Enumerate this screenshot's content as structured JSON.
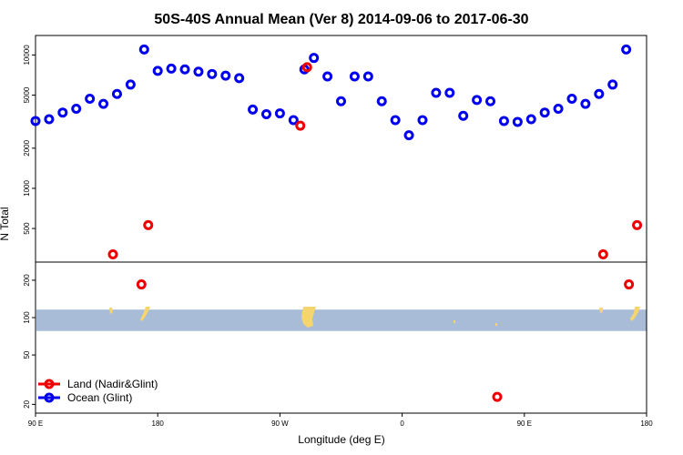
{
  "chart_data": {
    "type": "scatter",
    "title": "50S-40S Annual Mean (Ver 8)   2014-09-06 to 2017-06-30",
    "xlabel": "Longitude (deg E)",
    "ylabel": "N Total",
    "x_range": [
      90,
      450
    ],
    "x_ticks": [
      {
        "value": 90,
        "label": "90 E"
      },
      {
        "value": 180,
        "label": "180"
      },
      {
        "value": 270,
        "label": "90 W"
      },
      {
        "value": 360,
        "label": "0"
      },
      {
        "value": 450,
        "label": "90 E"
      },
      {
        "value": 540,
        "label": "180"
      }
    ],
    "top_panel": {
      "scale": "log",
      "ylim": [
        280,
        14000
      ],
      "y_ticks": [
        500,
        1000,
        2000,
        5000,
        10000
      ],
      "series": [
        {
          "name": "Ocean (Glint)",
          "color": "#0000ee",
          "points": [
            [
              90,
              3200
            ],
            [
              100,
              3300
            ],
            [
              110,
              3700
            ],
            [
              120,
              3950
            ],
            [
              130,
              4700
            ],
            [
              140,
              4300
            ],
            [
              150,
              5100
            ],
            [
              160,
              6000
            ],
            [
              170,
              11000
            ],
            [
              180,
              7600
            ],
            [
              190,
              7900
            ],
            [
              200,
              7800
            ],
            [
              210,
              7500
            ],
            [
              220,
              7200
            ],
            [
              230,
              7000
            ],
            [
              240,
              6700
            ],
            [
              250,
              3900
            ],
            [
              260,
              3600
            ],
            [
              270,
              3650
            ],
            [
              280,
              3250
            ],
            [
              288,
              7800
            ],
            [
              295,
              9500
            ],
            [
              305,
              6900
            ],
            [
              315,
              4500
            ],
            [
              325,
              6900
            ],
            [
              335,
              6900
            ],
            [
              345,
              4500
            ],
            [
              355,
              3250
            ],
            [
              365,
              2500
            ],
            [
              375,
              3250
            ],
            [
              385,
              5200
            ],
            [
              395,
              5200
            ],
            [
              405,
              3500
            ],
            [
              415,
              4600
            ],
            [
              425,
              4500
            ],
            [
              435,
              3200
            ],
            [
              445,
              3150
            ],
            [
              455,
              3300
            ],
            [
              465,
              3700
            ],
            [
              475,
              3950
            ],
            [
              485,
              4700
            ],
            [
              495,
              4300
            ],
            [
              505,
              5100
            ],
            [
              515,
              6000
            ],
            [
              525,
              11000
            ]
          ]
        },
        {
          "name": "Land (Nadir&Glint)",
          "color": "#ee0000",
          "points": [
            [
              147,
              320
            ],
            [
              173,
              530
            ],
            [
              285,
              2950
            ],
            [
              290,
              8100
            ],
            [
              508,
              320
            ],
            [
              533,
              530
            ]
          ]
        }
      ]
    },
    "bottom_panel": {
      "scale": "log",
      "ylim": [
        17,
        280
      ],
      "y_ticks": [
        20,
        50,
        100,
        200
      ],
      "band": {
        "y_min": 78,
        "y_max": 116,
        "color": "#a8bcd8"
      },
      "land_color": "#f5d56e",
      "series": [
        {
          "name": "Land (Nadir&Glint)",
          "color": "#ee0000",
          "points": [
            [
              168,
              185
            ],
            [
              430,
              23
            ],
            [
              527,
              185
            ]
          ]
        }
      ]
    },
    "legend": {
      "placement": "bottom-left",
      "entries": [
        {
          "label": "Land (Nadir&Glint)",
          "color": "#ee0000"
        },
        {
          "label": "Ocean (Glint)",
          "color": "#0000ee"
        }
      ]
    },
    "grid": false
  }
}
